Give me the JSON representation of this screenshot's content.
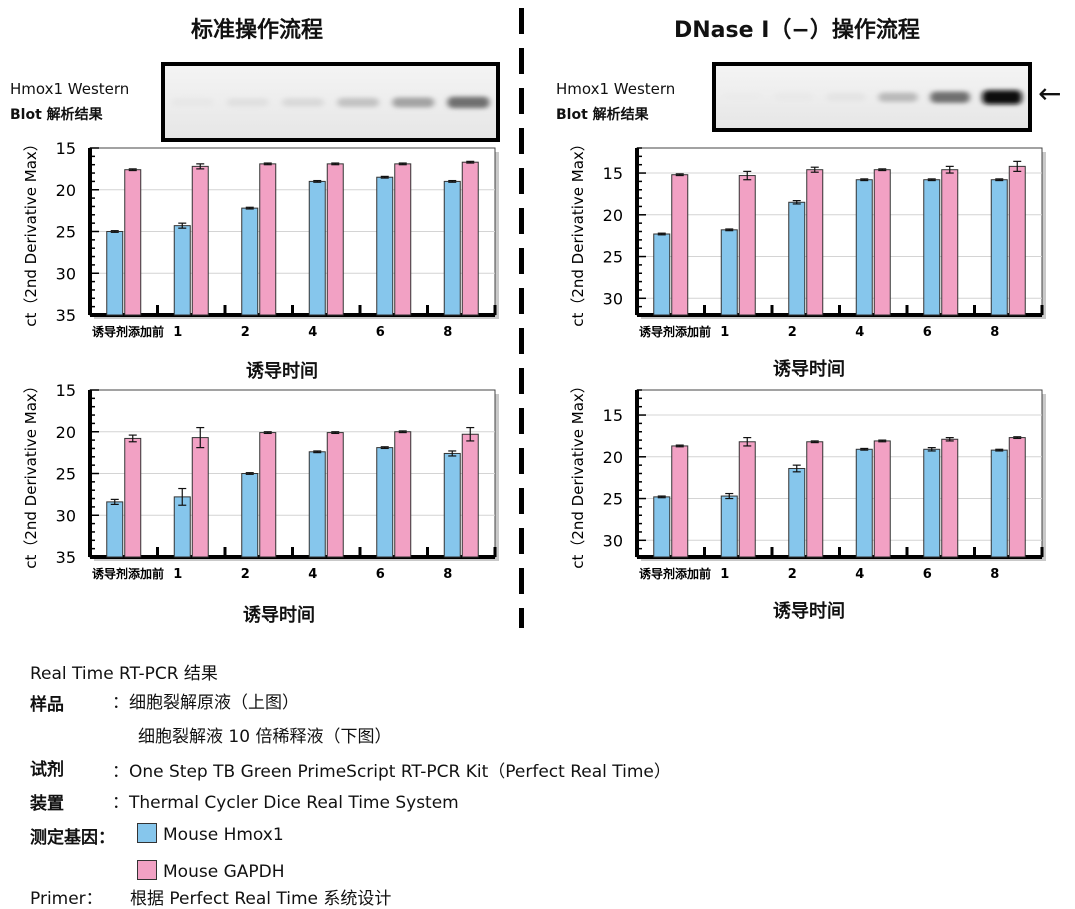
{
  "colors": {
    "hmox1": "#86C6EC",
    "gapdh": "#F2A1C4",
    "grid": "#d4d4d4",
    "frame_shadow": "#c9c9c9"
  },
  "panels": [
    {
      "title": "标准操作流程",
      "wb_label_1": "Hmox1    Western",
      "wb_label_2": "Blot 解析结果",
      "band_intensity": [
        0.02,
        0.05,
        0.08,
        0.18,
        0.32,
        0.55
      ]
    },
    {
      "title": "DNase I（−）操作流程",
      "wb_label_1": "Hmox1    Western",
      "wb_label_2": "Blot 解析结果",
      "band_intensity": [
        0.0,
        0.01,
        0.03,
        0.22,
        0.55,
        1.0
      ],
      "arrow": "←"
    }
  ],
  "chart_data": [
    {
      "type": "bar",
      "ylabel": "ct（2nd Derivative Max）",
      "xlabel": "诱导时间",
      "categories": [
        "诱导剂添加前",
        "1",
        "2",
        "4",
        "6",
        "8"
      ],
      "yticks": [
        15,
        20,
        25,
        30,
        35
      ],
      "ylim": [
        15,
        35
      ],
      "y_inverted": true,
      "series": [
        {
          "values": [
            25.0,
            24.3,
            22.2,
            19.0,
            18.5,
            19.0
          ],
          "errors": [
            0.1,
            0.3,
            0.1,
            0.1,
            0.1,
            0.1
          ]
        },
        {
          "values": [
            17.6,
            17.2,
            16.9,
            16.9,
            16.9,
            16.7
          ],
          "errors": [
            0.1,
            0.3,
            0.1,
            0.1,
            0.1,
            0.1
          ]
        }
      ]
    },
    {
      "type": "bar",
      "ylabel": "ct（2nd Derivative Max）",
      "xlabel": "诱导时间",
      "categories": [
        "诱导剂添加前",
        "1",
        "2",
        "4",
        "6",
        "8"
      ],
      "yticks": [
        15,
        20,
        25,
        30
      ],
      "ylim": [
        12,
        32
      ],
      "y_inverted": true,
      "series": [
        {
          "values": [
            22.3,
            21.8,
            18.5,
            15.8,
            15.8,
            15.8
          ],
          "errors": [
            0.1,
            0.1,
            0.2,
            0.1,
            0.1,
            0.1
          ]
        },
        {
          "values": [
            15.2,
            15.3,
            14.6,
            14.6,
            14.6,
            14.2
          ],
          "errors": [
            0.1,
            0.5,
            0.3,
            0.1,
            0.4,
            0.6
          ]
        }
      ]
    },
    {
      "type": "bar",
      "ylabel": "ct（2nd Derivative Max）",
      "xlabel": "诱导时间",
      "categories": [
        "诱导剂添加前",
        "1",
        "2",
        "4",
        "6",
        "8"
      ],
      "yticks": [
        15,
        20,
        25,
        30,
        35
      ],
      "ylim": [
        15,
        35
      ],
      "y_inverted": true,
      "series": [
        {
          "values": [
            28.4,
            27.8,
            25.0,
            22.4,
            21.9,
            22.6
          ],
          "errors": [
            0.3,
            1.0,
            0.1,
            0.1,
            0.1,
            0.3
          ]
        },
        {
          "values": [
            20.8,
            20.7,
            20.1,
            20.1,
            20.0,
            20.3
          ],
          "errors": [
            0.4,
            1.2,
            0.1,
            0.1,
            0.1,
            0.8
          ]
        }
      ]
    },
    {
      "type": "bar",
      "ylabel": "ct（2nd Derivative Max）",
      "xlabel": "诱导时间",
      "categories": [
        "诱导剂添加前",
        "1",
        "2",
        "4",
        "6",
        "8"
      ],
      "yticks": [
        15,
        20,
        25,
        30
      ],
      "ylim": [
        12,
        32
      ],
      "y_inverted": true,
      "series": [
        {
          "values": [
            24.8,
            24.7,
            21.4,
            19.1,
            19.1,
            19.2
          ],
          "errors": [
            0.1,
            0.3,
            0.4,
            0.1,
            0.2,
            0.1
          ]
        },
        {
          "values": [
            18.7,
            18.2,
            18.2,
            18.1,
            17.9,
            17.7
          ],
          "errors": [
            0.1,
            0.5,
            0.1,
            0.1,
            0.2,
            0.1
          ]
        }
      ]
    }
  ],
  "info": {
    "heading": "Real Time RT-PCR 结果",
    "sample_label": "样品",
    "sample_value_1": "：细胞裂解原液（上图）",
    "sample_value_2": "细胞裂解液 10 倍稀释液（下图）",
    "reagent_label": "试剂",
    "reagent_value": "：One Step TB Green PrimeScript RT-PCR Kit（Perfect Real Time）",
    "device_label": "装置",
    "device_value": "：Thermal Cycler Dice Real Time System",
    "gene_label": "测定基因：",
    "gene_1": "Mouse Hmox1",
    "gene_2": "Mouse GAPDH",
    "primer_label": "Primer：",
    "primer_value": "根据 Perfect Real Time 系统设计"
  }
}
